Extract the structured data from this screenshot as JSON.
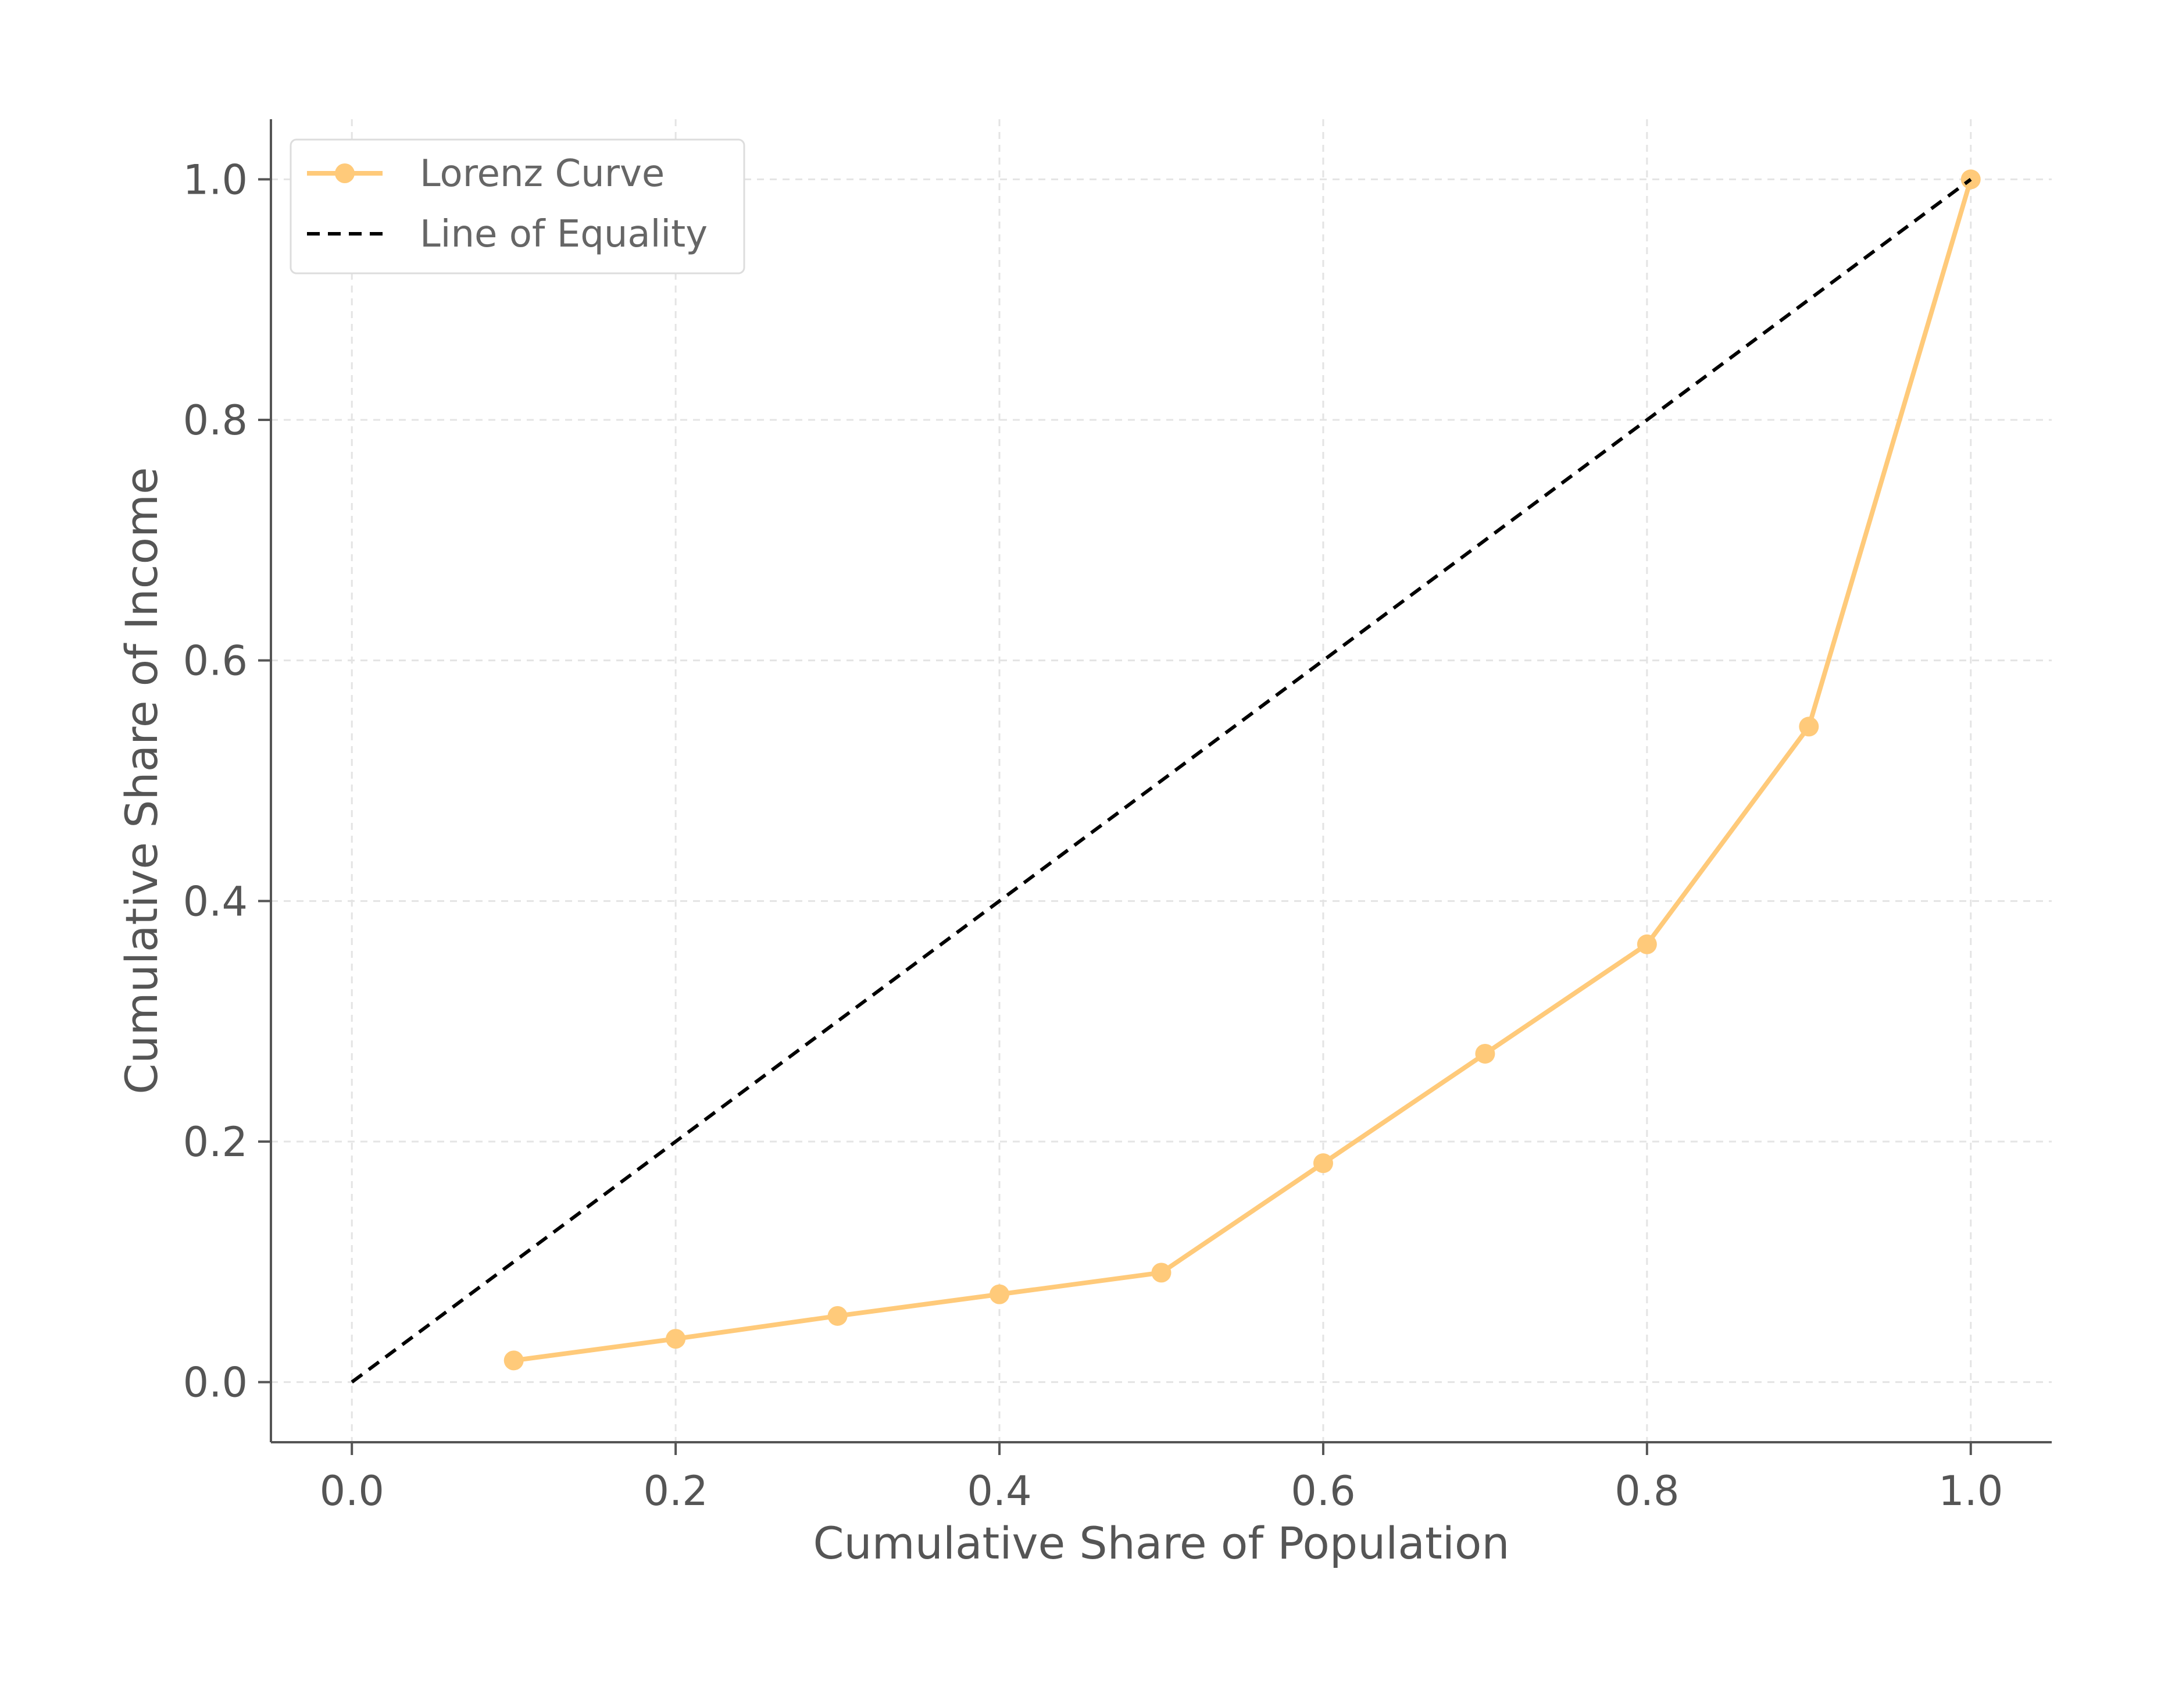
{
  "chart_data": {
    "type": "line",
    "title": "",
    "xlabel": "Cumulative Share of Population",
    "ylabel": "Cumulative Share of Income",
    "xlim": [
      -0.05,
      1.05
    ],
    "ylim": [
      -0.05,
      1.05
    ],
    "xticks": [
      "0.0",
      "0.2",
      "0.4",
      "0.6",
      "0.8",
      "1.0"
    ],
    "yticks": [
      "0.0",
      "0.2",
      "0.4",
      "0.6",
      "0.8",
      "1.0"
    ],
    "grid": true,
    "legend_position": "top-left",
    "series": [
      {
        "name": "Lorenz Curve",
        "style": "solid-line-with-markers",
        "color": "#FFCA7A",
        "x": [
          0.1,
          0.2,
          0.3,
          0.4,
          0.5,
          0.6,
          0.7,
          0.8,
          0.9,
          1.0
        ],
        "y": [
          0.018,
          0.036,
          0.055,
          0.073,
          0.091,
          0.182,
          0.273,
          0.364,
          0.545,
          1.0
        ]
      },
      {
        "name": "Line of Equality",
        "style": "dashed-line",
        "color": "#000000",
        "x": [
          0.0,
          1.0
        ],
        "y": [
          0.0,
          1.0
        ]
      }
    ]
  }
}
